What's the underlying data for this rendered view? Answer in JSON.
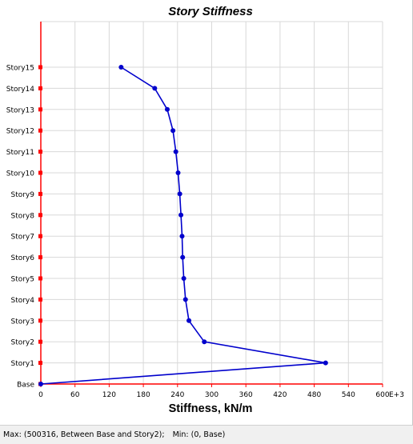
{
  "chart_data": {
    "type": "line",
    "title": "Story Stiffness",
    "xlabel": "Stiffness, kN/m",
    "x_unit_suffix": "E+3",
    "xlim": [
      0,
      600
    ],
    "x_ticks": [
      "0",
      "60",
      "120",
      "180",
      "240",
      "300",
      "360",
      "420",
      "480",
      "540",
      "600"
    ],
    "y_categories": [
      "Base",
      "Story1",
      "Story2",
      "Story3",
      "Story4",
      "Story5",
      "Story6",
      "Story7",
      "Story8",
      "Story9",
      "Story10",
      "Story11",
      "Story12",
      "Story13",
      "Story14",
      "Story15"
    ],
    "grid": true,
    "series": [
      {
        "color": "#0000cc",
        "points": [
          {
            "y": "Base",
            "x": 0
          },
          {
            "y": "Story1",
            "x": 500
          },
          {
            "y": "Story2",
            "x": 287
          },
          {
            "y": "Story3",
            "x": 260
          },
          {
            "y": "Story4",
            "x": 254
          },
          {
            "y": "Story5",
            "x": 251
          },
          {
            "y": "Story6",
            "x": 249
          },
          {
            "y": "Story7",
            "x": 248
          },
          {
            "y": "Story8",
            "x": 246
          },
          {
            "y": "Story9",
            "x": 244
          },
          {
            "y": "Story10",
            "x": 241
          },
          {
            "y": "Story11",
            "x": 237
          },
          {
            "y": "Story12",
            "x": 232
          },
          {
            "y": "Story13",
            "x": 222
          },
          {
            "y": "Story14",
            "x": 200
          },
          {
            "y": "Story15",
            "x": 141
          }
        ]
      }
    ],
    "axis_color": "#ff0000",
    "grid_color": "#d8d8d8"
  },
  "status": {
    "max_text": "Max: (500316, Between Base and Story2);",
    "min_text": "Min: (0, Base)"
  }
}
